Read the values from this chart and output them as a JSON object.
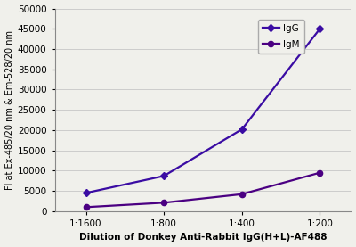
{
  "x_labels": [
    "1:1600",
    "1:800",
    "1:400",
    "1:200"
  ],
  "x_values": [
    0,
    1,
    2,
    3
  ],
  "IgG_values": [
    4500,
    8700,
    20200,
    45000
  ],
  "IgM_values": [
    1000,
    2100,
    4200,
    9500
  ],
  "IgG_color": "#3a0ca3",
  "IgM_color": "#4b0082",
  "IgG_label": "IgG",
  "IgM_label": "IgM",
  "ylabel": "Fl at Ex-485/20 nm & Em-528/20 nm",
  "xlabel": "Dilution of Donkey Anti-Rabbit IgG(H+L)-AF488",
  "ylim": [
    0,
    50000
  ],
  "yticks": [
    0,
    5000,
    10000,
    15000,
    20000,
    25000,
    30000,
    35000,
    40000,
    45000,
    50000
  ],
  "background_color": "#f0f0eb",
  "plot_bg_color": "#f0f0eb",
  "grid_color": "#cccccc"
}
